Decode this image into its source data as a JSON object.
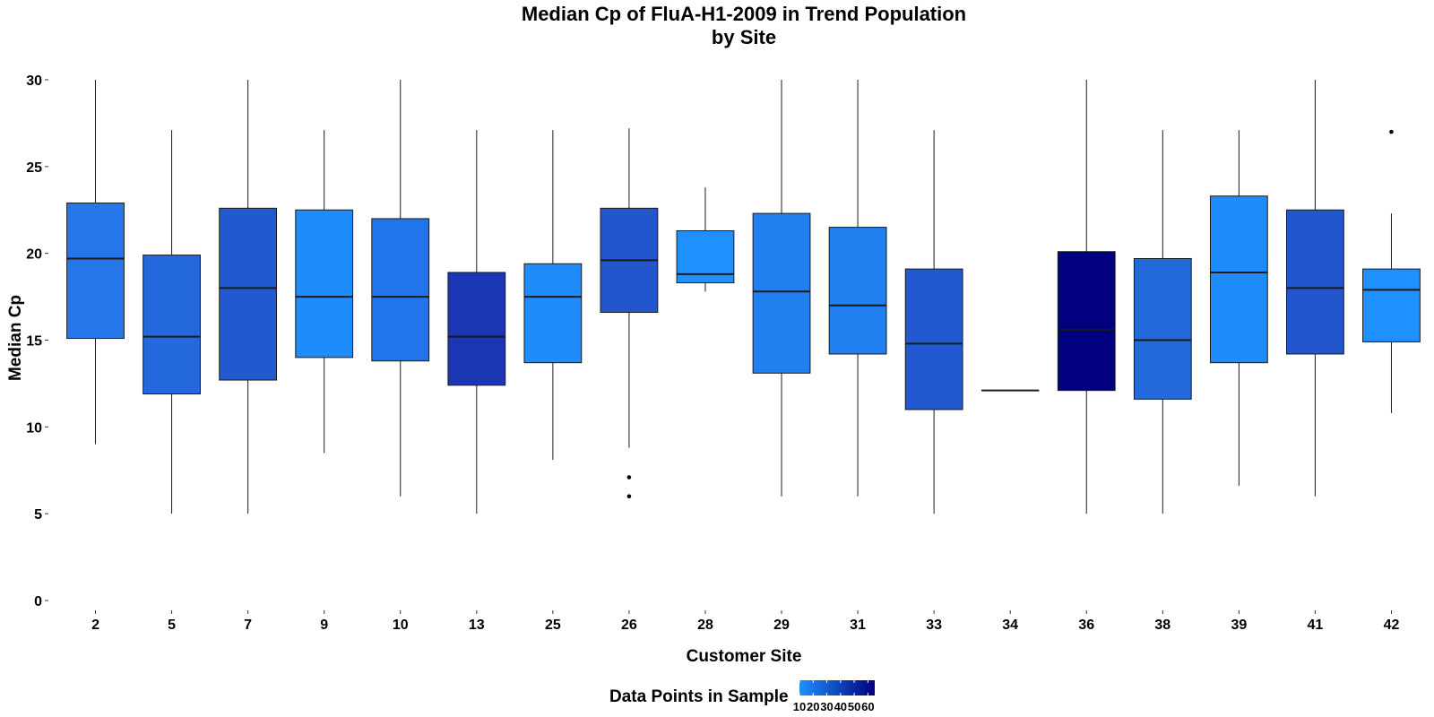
{
  "chart_data": {
    "type": "boxplot",
    "title": "Median Cp of FluA-H1-2009 in Trend Population",
    "subtitle": "by Site",
    "xlabel": "Customer Site",
    "ylabel": "Median Cp",
    "ylim": [
      -1,
      31
    ],
    "yticks": [
      0,
      5,
      10,
      15,
      20,
      25,
      30
    ],
    "grid": false,
    "legend": {
      "title": "Data Points in Sample",
      "position": "bottom",
      "tick_labels": [
        "10",
        "20",
        "30",
        "40",
        "50",
        "60"
      ],
      "range": [
        10,
        65
      ],
      "color_low": "#1e90ff",
      "color_high": "#000080"
    },
    "categories": [
      "2",
      "5",
      "7",
      "9",
      "10",
      "13",
      "25",
      "26",
      "28",
      "29",
      "31",
      "33",
      "34",
      "36",
      "38",
      "39",
      "41",
      "42"
    ],
    "boxes": [
      {
        "site": "2",
        "min": 9,
        "q1": 15.1,
        "median": 19.7,
        "q3": 22.9,
        "max": 30,
        "n": 30,
        "color": "#2576e8",
        "outliers": []
      },
      {
        "site": "5",
        "min": 5,
        "q1": 11.9,
        "median": 15.2,
        "q3": 19.9,
        "max": 27.1,
        "n": 35,
        "color": "#2369dc",
        "outliers": []
      },
      {
        "site": "7",
        "min": 5,
        "q1": 12.7,
        "median": 18.0,
        "q3": 22.6,
        "max": 30,
        "n": 45,
        "color": "#2259d0",
        "outliers": []
      },
      {
        "site": "9",
        "min": 8.5,
        "q1": 14.0,
        "median": 17.5,
        "q3": 22.5,
        "max": 27.1,
        "n": 12,
        "color": "#1e8cfa",
        "outliers": []
      },
      {
        "site": "10",
        "min": 6,
        "q1": 13.8,
        "median": 17.5,
        "q3": 22.0,
        "max": 30,
        "n": 25,
        "color": "#2175ea",
        "outliers": []
      },
      {
        "site": "13",
        "min": 5,
        "q1": 12.4,
        "median": 15.2,
        "q3": 18.9,
        "max": 27.1,
        "n": 55,
        "color": "#1a36b2",
        "outliers": []
      },
      {
        "site": "25",
        "min": 8.1,
        "q1": 13.7,
        "median": 17.5,
        "q3": 19.4,
        "max": 27.1,
        "n": 12,
        "color": "#1e8cfa",
        "outliers": []
      },
      {
        "site": "26",
        "min": 8.8,
        "q1": 16.6,
        "median": 19.6,
        "q3": 22.6,
        "max": 27.2,
        "n": 45,
        "color": "#2256cc",
        "outliers": [
          7.1,
          6.0
        ]
      },
      {
        "site": "28",
        "min": 17.8,
        "q1": 18.3,
        "median": 18.8,
        "q3": 21.3,
        "max": 23.8,
        "n": 10,
        "color": "#1e90ff",
        "outliers": []
      },
      {
        "site": "29",
        "min": 6,
        "q1": 13.1,
        "median": 17.8,
        "q3": 22.3,
        "max": 30,
        "n": 22,
        "color": "#2180f0",
        "outliers": []
      },
      {
        "site": "31",
        "min": 6,
        "q1": 14.2,
        "median": 17.0,
        "q3": 21.5,
        "max": 30,
        "n": 22,
        "color": "#2180f0",
        "outliers": []
      },
      {
        "site": "33",
        "min": 5,
        "q1": 11.0,
        "median": 14.8,
        "q3": 19.1,
        "max": 27.1,
        "n": 45,
        "color": "#2259d0",
        "outliers": []
      },
      {
        "site": "34",
        "min": 12.1,
        "q1": 12.1,
        "median": 12.1,
        "q3": 12.1,
        "max": 12.1,
        "n": 1,
        "color": "#1e90ff",
        "outliers": []
      },
      {
        "site": "36",
        "min": 5,
        "q1": 12.1,
        "median": 15.6,
        "q3": 20.1,
        "max": 30,
        "n": 65,
        "color": "#000080",
        "outliers": []
      },
      {
        "site": "38",
        "min": 5,
        "q1": 11.6,
        "median": 15.0,
        "q3": 19.7,
        "max": 27.1,
        "n": 35,
        "color": "#2369dc",
        "outliers": []
      },
      {
        "site": "39",
        "min": 6.6,
        "q1": 13.7,
        "median": 18.9,
        "q3": 23.3,
        "max": 27.1,
        "n": 12,
        "color": "#1e8cfa",
        "outliers": []
      },
      {
        "site": "41",
        "min": 6,
        "q1": 14.2,
        "median": 18.0,
        "q3": 22.5,
        "max": 30,
        "n": 45,
        "color": "#2256cc",
        "outliers": []
      },
      {
        "site": "42",
        "min": 10.8,
        "q1": 14.9,
        "median": 17.9,
        "q3": 19.1,
        "max": 22.3,
        "n": 10,
        "color": "#1e90ff",
        "outliers": [
          27.0
        ]
      }
    ]
  }
}
